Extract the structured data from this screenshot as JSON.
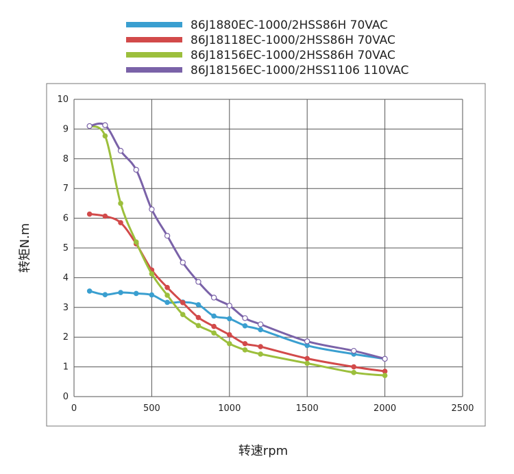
{
  "chart_data": {
    "type": "line",
    "title": "",
    "xlabel": "转速rpm",
    "ylabel": "转矩N.m",
    "xlim": [
      0,
      2500
    ],
    "ylim": [
      0,
      10
    ],
    "x_ticks": [
      "0",
      "500",
      "1000",
      "1500",
      "2000",
      "2500"
    ],
    "y_ticks": [
      "0",
      "1",
      "2",
      "3",
      "4",
      "5",
      "6",
      "7",
      "8",
      "9",
      "10"
    ],
    "grid": true,
    "legend_position": "top",
    "series": [
      {
        "name": "86J1880EC-1000/2HSS86H   70VAC",
        "color": "#3a9fd0",
        "marker": "filled",
        "x": [
          100,
          200,
          300,
          400,
          500,
          600,
          700,
          800,
          900,
          1000,
          1100,
          1200,
          1500,
          1800,
          2000
        ],
        "y": [
          3.55,
          3.43,
          3.5,
          3.47,
          3.42,
          3.17,
          3.18,
          3.09,
          2.71,
          2.62,
          2.38,
          2.25,
          1.72,
          1.43,
          1.27
        ]
      },
      {
        "name": "86J18118EC-1000/2HSS86H  70VAC",
        "color": "#d24a4a",
        "marker": "filled",
        "x": [
          100,
          200,
          300,
          400,
          500,
          600,
          700,
          800,
          900,
          1000,
          1100,
          1200,
          1500,
          1800,
          2000
        ],
        "y": [
          6.14,
          6.07,
          5.85,
          5.14,
          4.26,
          3.67,
          3.16,
          2.66,
          2.36,
          2.08,
          1.78,
          1.68,
          1.28,
          1.0,
          0.85
        ]
      },
      {
        "name": "86J18156EC-1000/2HSS86H  70VAC",
        "color": "#9cbf3c",
        "marker": "filled",
        "x": [
          100,
          200,
          300,
          400,
          500,
          600,
          700,
          800,
          900,
          1000,
          1100,
          1200,
          1500,
          1800,
          2000
        ],
        "y": [
          9.1,
          8.77,
          6.5,
          5.2,
          4.13,
          3.41,
          2.76,
          2.39,
          2.14,
          1.78,
          1.57,
          1.43,
          1.12,
          0.81,
          0.71
        ]
      },
      {
        "name": "86J18156EC-1000/2HSS1106  110VAC",
        "color": "#7a62a8",
        "marker": "open",
        "x": [
          100,
          200,
          300,
          400,
          500,
          600,
          700,
          800,
          900,
          1000,
          1100,
          1200,
          1500,
          1800,
          2000
        ],
        "y": [
          9.1,
          9.13,
          8.27,
          7.63,
          6.3,
          5.41,
          4.51,
          3.86,
          3.33,
          3.06,
          2.64,
          2.43,
          1.86,
          1.54,
          1.27
        ]
      }
    ]
  }
}
